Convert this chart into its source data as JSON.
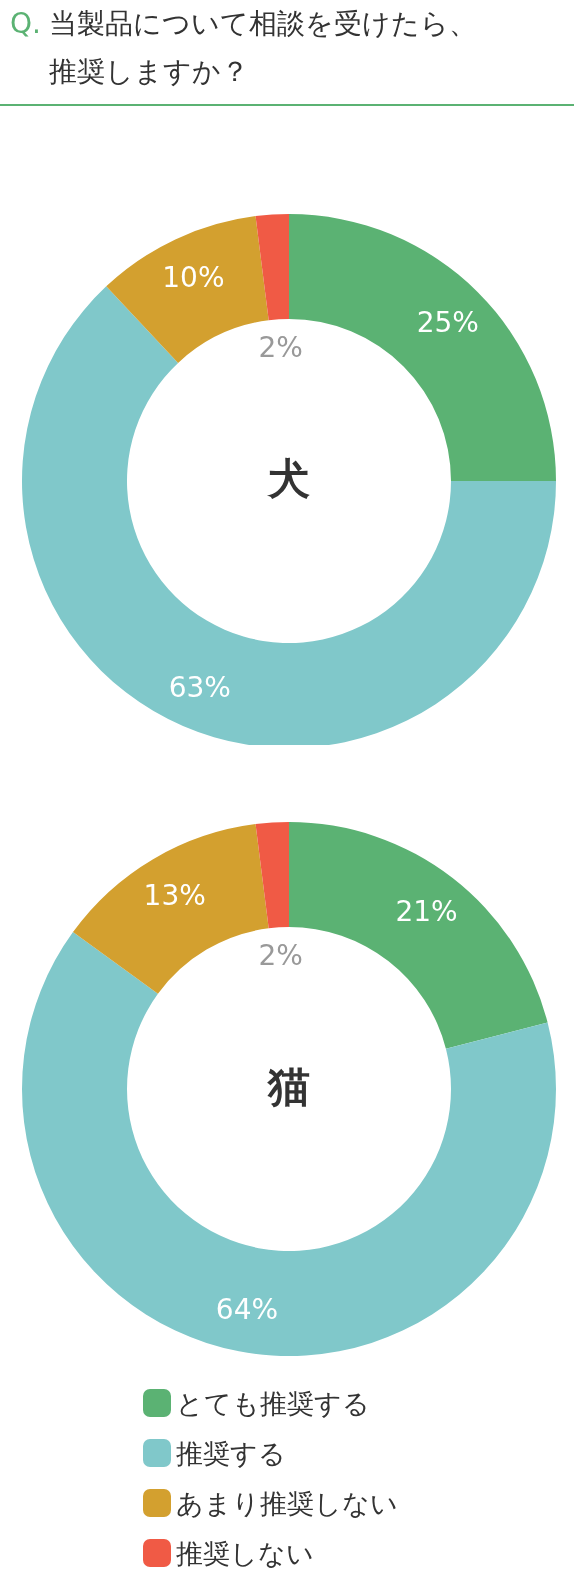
{
  "chart_data": [
    {
      "type": "donut",
      "title": "Q. 当製品について相談を受けたら、推奨しますか？",
      "annotations": [
        "犬"
      ],
      "categories": [
        null,
        null,
        null,
        null
      ],
      "values": [
        25,
        63,
        10,
        2
      ],
      "value_labels": [
        "25%",
        "63%",
        "10%",
        "2%"
      ],
      "colors": [
        "#5bb273",
        "#80c8ca",
        "#d3a02f",
        "#f05a45"
      ]
    },
    {
      "type": "donut",
      "annotations": [
        "猫"
      ],
      "categories": [
        "とても推奨する",
        "推奨する",
        "あまり推奨しない",
        "推奨しない"
      ],
      "values": [
        21,
        64,
        13,
        2
      ],
      "value_labels": [
        "21%",
        "64%",
        "13%",
        "2%"
      ],
      "colors": [
        "#5bb273",
        "#80c8ca",
        "#d3a02f",
        "#f05a45"
      ],
      "legend": "bottom"
    }
  ]
}
